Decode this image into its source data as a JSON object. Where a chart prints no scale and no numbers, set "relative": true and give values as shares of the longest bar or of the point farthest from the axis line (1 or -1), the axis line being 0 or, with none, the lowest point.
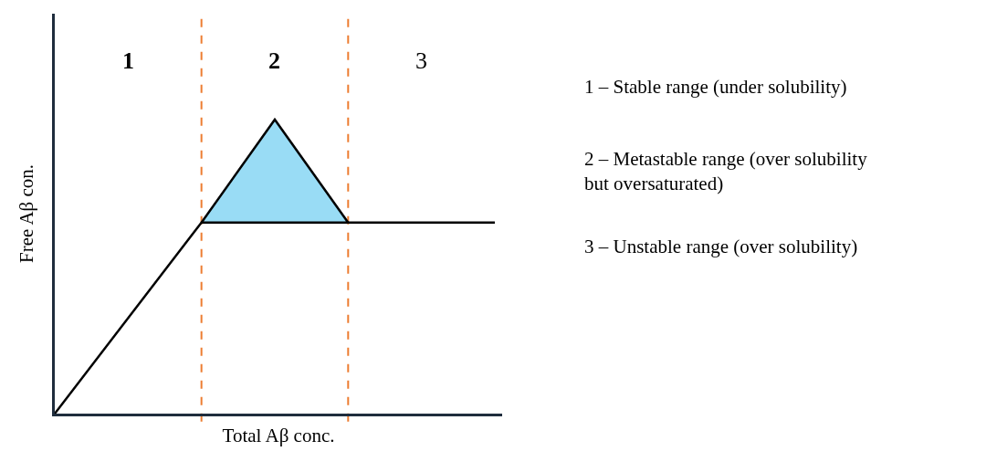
{
  "chart_data": {
    "type": "line",
    "relative": true,
    "xlabel": "Total Aβ conc.",
    "ylabel": "Free Aβ con.",
    "categories": [
      null,
      null,
      null,
      null,
      null,
      null,
      null,
      null,
      null,
      null,
      null,
      null,
      null
    ],
    "series": [
      {
        "color": "#000000",
        "values": [
          0,
          null,
          null,
          null,
          0.65,
          null,
          null,
          null,
          null,
          null,
          null,
          null,
          0.65
        ]
      },
      {
        "type": "area",
        "color": "#99dcf5",
        "values": [
          null,
          null,
          null,
          null,
          0.65,
          null,
          1,
          null,
          0.65,
          null,
          null,
          null,
          null
        ]
      }
    ],
    "annotations": [
      "1",
      "2",
      "3",
      "1 – Stable range (under solubility)",
      "2 – Metastable range (over solubility but oversaturated)",
      "3 – Unstable range (over solubility)"
    ],
    "tick_labels": false
  }
}
